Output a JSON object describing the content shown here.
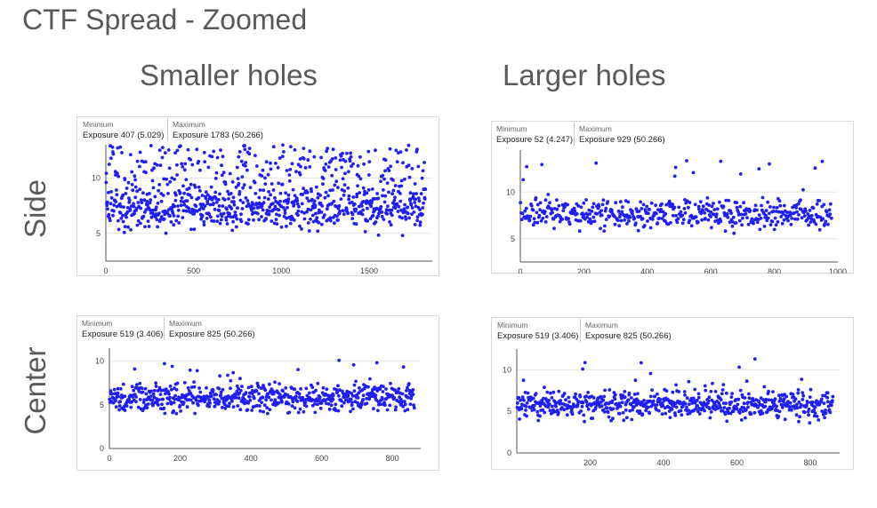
{
  "title": "CTF Spread - Zoomed",
  "columns": [
    "Smaller holes",
    "Larger holes"
  ],
  "rows": [
    "Side",
    "Center"
  ],
  "colors": {
    "point": "#1f1ff5",
    "axis": "#555555",
    "grid": "#e6e6e6",
    "frame": "#d9d9d9"
  },
  "panels": [
    {
      "stats": {
        "min_label": "Minimum",
        "min_value": "Exposure 407 (5.029)",
        "max_label": "Maximum",
        "max_value": "Exposure 1783 (50.266)"
      }
    },
    {
      "stats": {
        "min_label": "Minimum",
        "min_value": "Exposure 52 (4.247)",
        "max_label": "Maximum",
        "max_value": "Exposure 929 (50.266)"
      }
    },
    {
      "stats": {
        "min_label": "Minimum",
        "min_value": "Exposure 519 (3.406)",
        "max_label": "Maximum",
        "max_value": "Exposure 825 (50.266)"
      }
    },
    {
      "stats": {
        "min_label": "Minimum",
        "min_value": "Exposure 519 (3.406)",
        "max_label": "Maximum",
        "max_value": "Exposure 825 (50.266)"
      }
    }
  ],
  "chart_data": [
    {
      "type": "scatter",
      "row": "Side",
      "column": "Smaller holes",
      "xlim": [
        0,
        1860
      ],
      "ylim": [
        2.5,
        13
      ],
      "xticks": [
        0,
        500,
        1000,
        1500
      ],
      "yticks": [
        5,
        10
      ],
      "n_points": 900,
      "baseline": 7.3,
      "noise": 0.9,
      "outlier_rate": 0.32,
      "outlier_max": 13,
      "series": [
        {
          "point_count": 900,
          "y_typical_range": [
            6,
            9
          ],
          "y_clipped_max": 13
        }
      ]
    },
    {
      "type": "scatter",
      "row": "Side",
      "column": "Larger holes",
      "xlim": [
        0,
        1000
      ],
      "ylim": [
        2.5,
        14.5
      ],
      "xticks": [
        0,
        200,
        400,
        600,
        800,
        1000
      ],
      "yticks": [
        5,
        10
      ],
      "n_points": 500,
      "baseline": 7.6,
      "noise": 0.75,
      "outlier_rate": 0.03,
      "outlier_max": 13.5,
      "series": [
        {
          "point_count": 500,
          "y_typical_range": [
            6,
            9
          ]
        }
      ]
    },
    {
      "type": "scatter",
      "row": "Center",
      "column": "Smaller holes",
      "xlim": [
        0,
        880
      ],
      "ylim": [
        0,
        11.5
      ],
      "xticks": [
        0,
        200,
        400,
        600,
        800
      ],
      "yticks": [
        0,
        5,
        10
      ],
      "n_points": 650,
      "baseline": 5.8,
      "noise": 0.8,
      "outlier_rate": 0.03,
      "outlier_max": 11,
      "series": [
        {
          "point_count": 650,
          "y_typical_range": [
            4,
            7.5
          ]
        }
      ]
    },
    {
      "type": "scatter",
      "row": "Center",
      "column": "Larger holes",
      "xlim": [
        0,
        880
      ],
      "ylim": [
        0,
        12.5
      ],
      "xticks": [
        200,
        400,
        600,
        800
      ],
      "yticks": [
        0,
        5,
        10
      ],
      "n_points": 650,
      "baseline": 5.8,
      "noise": 0.8,
      "outlier_rate": 0.03,
      "outlier_max": 11.5,
      "series": [
        {
          "point_count": 650,
          "y_typical_range": [
            4,
            7.5
          ]
        }
      ]
    }
  ]
}
